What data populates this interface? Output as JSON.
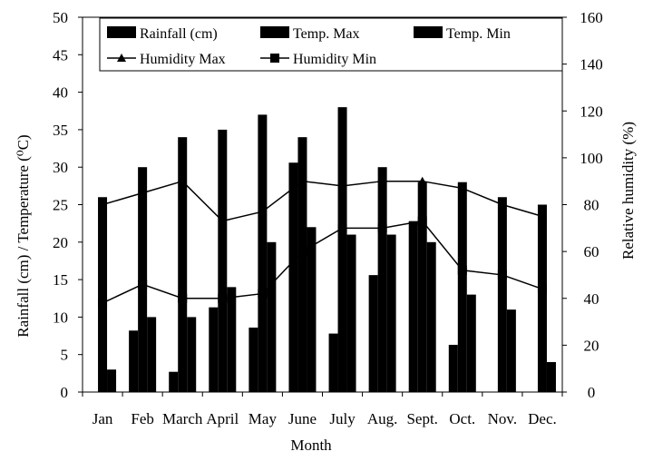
{
  "chart_data": {
    "type": "bar",
    "xlabel": "Month",
    "ylabel_left": "Rainfall (cm) / Temperature (⁰C)",
    "ylabel_right": "Relative humidity (%)",
    "ylim_left": [
      0,
      50
    ],
    "ylim_right": [
      0,
      160
    ],
    "yticks_left": [
      "0",
      "5",
      "10",
      "15",
      "20",
      "25",
      "30",
      "35",
      "40",
      "45",
      "50"
    ],
    "yticks_right": [
      "0",
      "20",
      "40",
      "60",
      "80",
      "100",
      "120",
      "140",
      "160"
    ],
    "categories": [
      "Jan",
      "Feb",
      "March",
      "April",
      "May",
      "June",
      "July",
      "Aug.",
      "Sept.",
      "Oct.",
      "Nov.",
      "Dec."
    ],
    "legend_position": "top",
    "grid": false,
    "series": [
      {
        "name": "Rainfall (cm)",
        "type": "bar",
        "axis": "left",
        "color": "#000000",
        "values": [
          0,
          8.2,
          2.7,
          11.3,
          8.6,
          30.6,
          7.8,
          15.6,
          22.8,
          6.3,
          0,
          0
        ]
      },
      {
        "name": "Temp. Max",
        "type": "bar",
        "axis": "left",
        "color": "#000000",
        "values": [
          26,
          30,
          34,
          35,
          37,
          34,
          38,
          30,
          28,
          28,
          26,
          25
        ]
      },
      {
        "name": "Temp. Min",
        "type": "bar",
        "axis": "left",
        "color": "#000000",
        "values": [
          3,
          10,
          10,
          14,
          20,
          22,
          21,
          21,
          20,
          13,
          11,
          4
        ]
      },
      {
        "name": "Humidity Max",
        "type": "line",
        "axis": "right",
        "marker": "triangle",
        "color": "#000000",
        "values": [
          80,
          85,
          90,
          73,
          77,
          90,
          88,
          90,
          90,
          87,
          80,
          75
        ]
      },
      {
        "name": "Humidity Min",
        "type": "line",
        "axis": "right",
        "marker": "square",
        "color": "#000000",
        "values": [
          38,
          46,
          40,
          40,
          42,
          60,
          70,
          70,
          73,
          52,
          50,
          44
        ]
      }
    ]
  }
}
